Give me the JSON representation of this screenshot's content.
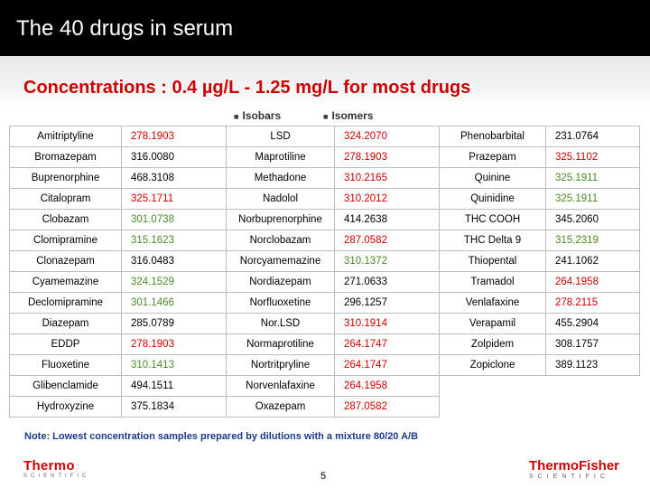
{
  "slide": {
    "title": "The 40 drugs in serum",
    "subtitle": "Concentrations : 0.4 µg/L - 1.25 mg/L for most drugs",
    "legend": {
      "isobars": "Isobars",
      "isomers": "Isomers"
    },
    "note": "Note: Lowest concentration samples prepared by dilutions with a mixture 80/20 A/B",
    "page_number": "5",
    "logo_left": {
      "word": "Thermo",
      "sub": "SCIENTIFIC"
    },
    "logo_right": {
      "word": "ThermoFisher",
      "sub": "SCIENTIFIC"
    }
  },
  "colors": {
    "isobar": "#cc0000",
    "isomer": "#4a8a2a",
    "normal": "#000000"
  },
  "table": {
    "rows": [
      [
        {
          "t": "Amitriptyline"
        },
        {
          "t": "278.1903",
          "c": "isobar"
        },
        {
          "t": "LSD"
        },
        {
          "t": "324.2070",
          "c": "isobar"
        },
        {
          "t": "Phenobarbital"
        },
        {
          "t": "231.0764"
        }
      ],
      [
        {
          "t": "Bromazepam"
        },
        {
          "t": "316.0080"
        },
        {
          "t": "Maprotiline"
        },
        {
          "t": "278.1903",
          "c": "isobar"
        },
        {
          "t": "Prazepam"
        },
        {
          "t": "325.1102",
          "c": "isobar"
        }
      ],
      [
        {
          "t": "Buprenorphine"
        },
        {
          "t": "468.3108"
        },
        {
          "t": "Methadone"
        },
        {
          "t": "310.2165",
          "c": "isobar"
        },
        {
          "t": "Quinine"
        },
        {
          "t": "325.1911",
          "c": "isomer"
        }
      ],
      [
        {
          "t": "Citalopram"
        },
        {
          "t": "325.1711",
          "c": "isobar"
        },
        {
          "t": "Nadolol"
        },
        {
          "t": "310.2012",
          "c": "isobar"
        },
        {
          "t": "Quinidine"
        },
        {
          "t": "325.1911",
          "c": "isomer"
        }
      ],
      [
        {
          "t": "Clobazam"
        },
        {
          "t": "301.0738",
          "c": "isomer"
        },
        {
          "t": "Norbuprenorphine"
        },
        {
          "t": "414.2638"
        },
        {
          "t": "THC COOH"
        },
        {
          "t": "345.2060"
        }
      ],
      [
        {
          "t": "Clomipramine"
        },
        {
          "t": "315.1623",
          "c": "isomer"
        },
        {
          "t": "Norclobazam"
        },
        {
          "t": "287.0582",
          "c": "isobar"
        },
        {
          "t": "THC Delta 9"
        },
        {
          "t": "315.2319",
          "c": "isomer"
        }
      ],
      [
        {
          "t": "Clonazepam"
        },
        {
          "t": "316.0483"
        },
        {
          "t": "Norcyamemazine"
        },
        {
          "t": "310.1372",
          "c": "isomer"
        },
        {
          "t": "Thiopental"
        },
        {
          "t": "241.1062"
        }
      ],
      [
        {
          "t": "Cyamemazine"
        },
        {
          "t": "324.1529",
          "c": "isomer"
        },
        {
          "t": "Nordiazepam"
        },
        {
          "t": "271.0633"
        },
        {
          "t": "Tramadol"
        },
        {
          "t": "264.1958",
          "c": "isobar"
        }
      ],
      [
        {
          "t": "Declomipramine"
        },
        {
          "t": "301.1466",
          "c": "isomer"
        },
        {
          "t": "Norfluoxetine"
        },
        {
          "t": "296.1257"
        },
        {
          "t": "Venlafaxine"
        },
        {
          "t": "278.2115",
          "c": "isobar"
        }
      ],
      [
        {
          "t": "Diazepam"
        },
        {
          "t": "285.0789"
        },
        {
          "t": "Nor.LSD"
        },
        {
          "t": "310.1914",
          "c": "isobar"
        },
        {
          "t": "Verapamil"
        },
        {
          "t": "455.2904"
        }
      ],
      [
        {
          "t": "EDDP"
        },
        {
          "t": "278.1903",
          "c": "isobar"
        },
        {
          "t": "Normaprotiline"
        },
        {
          "t": "264.1747",
          "c": "isobar"
        },
        {
          "t": "Zolpidem"
        },
        {
          "t": "308.1757"
        }
      ],
      [
        {
          "t": "Fluoxetine"
        },
        {
          "t": "310.1413",
          "c": "isomer"
        },
        {
          "t": "Nortritpryline"
        },
        {
          "t": "264.1747",
          "c": "isobar"
        },
        {
          "t": "Zopiclone"
        },
        {
          "t": "389.1123"
        }
      ],
      [
        {
          "t": "Glibenclamide"
        },
        {
          "t": "494.1511"
        },
        {
          "t": "Norvenlafaxine"
        },
        {
          "t": "264.1958",
          "c": "isobar"
        }
      ],
      [
        {
          "t": "Hydroxyzine"
        },
        {
          "t": "375.1834"
        },
        {
          "t": "Oxazepam"
        },
        {
          "t": "287.0582",
          "c": "isobar"
        }
      ]
    ]
  }
}
